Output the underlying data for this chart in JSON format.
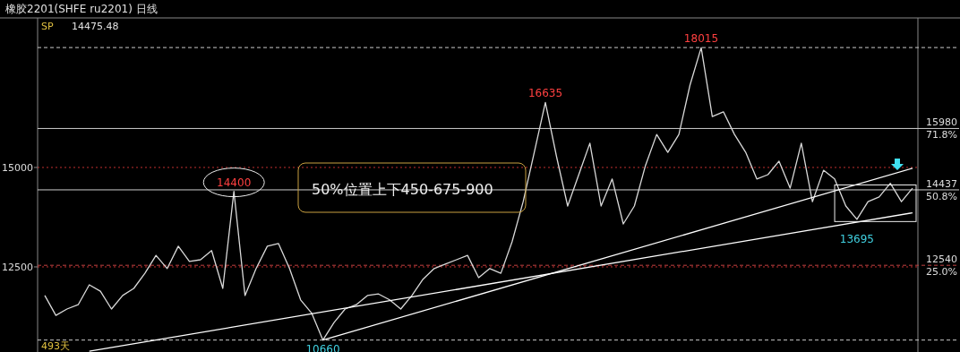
{
  "chart_data": {
    "type": "line",
    "title": "橡胶2201(SHFE ru2201) 日线",
    "categories": [
      null,
      null,
      null,
      null,
      null,
      null,
      null,
      null,
      null,
      null,
      null,
      null,
      null,
      null,
      null,
      null,
      null,
      null,
      null,
      null,
      null,
      null,
      null,
      null,
      null,
      null,
      null,
      null,
      null,
      null,
      null,
      null,
      null,
      null,
      null,
      null,
      null,
      null,
      null,
      null,
      null,
      null,
      null,
      null,
      null,
      null,
      null,
      null,
      null,
      null,
      null,
      null,
      null,
      null,
      null,
      null,
      null,
      null,
      null,
      null,
      null,
      null,
      null,
      null,
      null,
      null,
      null,
      null,
      null,
      null,
      null,
      null,
      null,
      null,
      null,
      null,
      null,
      null,
      null
    ],
    "series": [
      {
        "color": "#d9d9d9",
        "values": [
          11780,
          11280,
          11440,
          11550,
          12050,
          11890,
          11440,
          11780,
          11960,
          12340,
          12790,
          12460,
          13020,
          12640,
          12680,
          12910,
          11960,
          14400,
          11780,
          12460,
          13020,
          13090,
          12460,
          11670,
          11330,
          10660,
          11100,
          11440,
          11550,
          11780,
          11820,
          11670,
          11440,
          11780,
          12190,
          12460,
          12570,
          12680,
          12790,
          12230,
          12460,
          12340,
          13130,
          14140,
          15380,
          16635,
          15270,
          14030,
          14820,
          15610,
          14030,
          14710,
          13580,
          14030,
          15050,
          15830,
          15380,
          15830,
          17070,
          18015,
          16280,
          16400,
          15830,
          15380,
          14710,
          14820,
          15160,
          14480,
          15610,
          14140,
          14930,
          14710,
          14030,
          13695,
          14140,
          14260,
          14600,
          14140,
          14480
        ]
      },
      {
        "type": "line",
        "color": "#ffffff",
        "values": [
          null,
          null,
          null,
          null,
          10380,
          null,
          null,
          null,
          null,
          null,
          null,
          null,
          null,
          null,
          null,
          null,
          null,
          null,
          null,
          null,
          null,
          null,
          null,
          null,
          null,
          null,
          null,
          null,
          null,
          null,
          null,
          null,
          null,
          null,
          null,
          null,
          null,
          null,
          null,
          null,
          null,
          null,
          null,
          null,
          null,
          null,
          null,
          null,
          null,
          null,
          null,
          null,
          null,
          null,
          null,
          null,
          null,
          null,
          null,
          null,
          null,
          null,
          null,
          null,
          null,
          null,
          null,
          null,
          null,
          null,
          null,
          null,
          null,
          null,
          null,
          null,
          null,
          null,
          13860
        ]
      },
      {
        "type": "line",
        "color": "#ffffff",
        "values": [
          null,
          null,
          null,
          null,
          null,
          null,
          null,
          null,
          null,
          null,
          null,
          null,
          null,
          null,
          null,
          null,
          null,
          null,
          null,
          null,
          null,
          null,
          null,
          null,
          null,
          10660,
          null,
          null,
          null,
          null,
          null,
          null,
          null,
          null,
          null,
          null,
          null,
          null,
          null,
          null,
          null,
          null,
          null,
          null,
          null,
          null,
          null,
          null,
          null,
          null,
          null,
          null,
          null,
          null,
          null,
          null,
          null,
          null,
          null,
          null,
          null,
          null,
          null,
          null,
          null,
          null,
          null,
          null,
          null,
          null,
          null,
          null,
          null,
          null,
          null,
          null,
          null,
          null,
          14980
        ]
      }
    ],
    "ylim": [
      10360,
      18760
    ],
    "yticks": [
      12500,
      15000
    ],
    "tick_labels": "y",
    "grid": "y",
    "ref_lines": [
      {
        "axis": "y",
        "value": 18015,
        "label": null,
        "color": "#cccccc",
        "line_style": "dashed"
      },
      {
        "axis": "y",
        "value": 15980,
        "label": "15980\n71.8%",
        "color": "#cccccc",
        "line_style": "solid"
      },
      {
        "axis": "y",
        "value": 14437,
        "label": "14437\n50.8%",
        "color": "#cccccc",
        "line_style": "solid"
      },
      {
        "axis": "y",
        "value": 12540,
        "label": "12540\n25.0%",
        "color": "#c04040",
        "line_style": "dashed"
      },
      {
        "axis": "y",
        "value": 10660,
        "label": null,
        "color": "#cccccc",
        "line_style": "dashed"
      }
    ],
    "annotations": [
      {
        "text": "14400",
        "y": 14400
      },
      {
        "text": "16635",
        "y": 16635
      },
      {
        "text": "18015",
        "y": 18015
      },
      {
        "text": "10660",
        "y": 10660
      },
      {
        "text": "13695",
        "y": 13695
      },
      "50%位置上下450-675-900",
      "SP",
      "14475.48",
      "493天"
    ]
  }
}
